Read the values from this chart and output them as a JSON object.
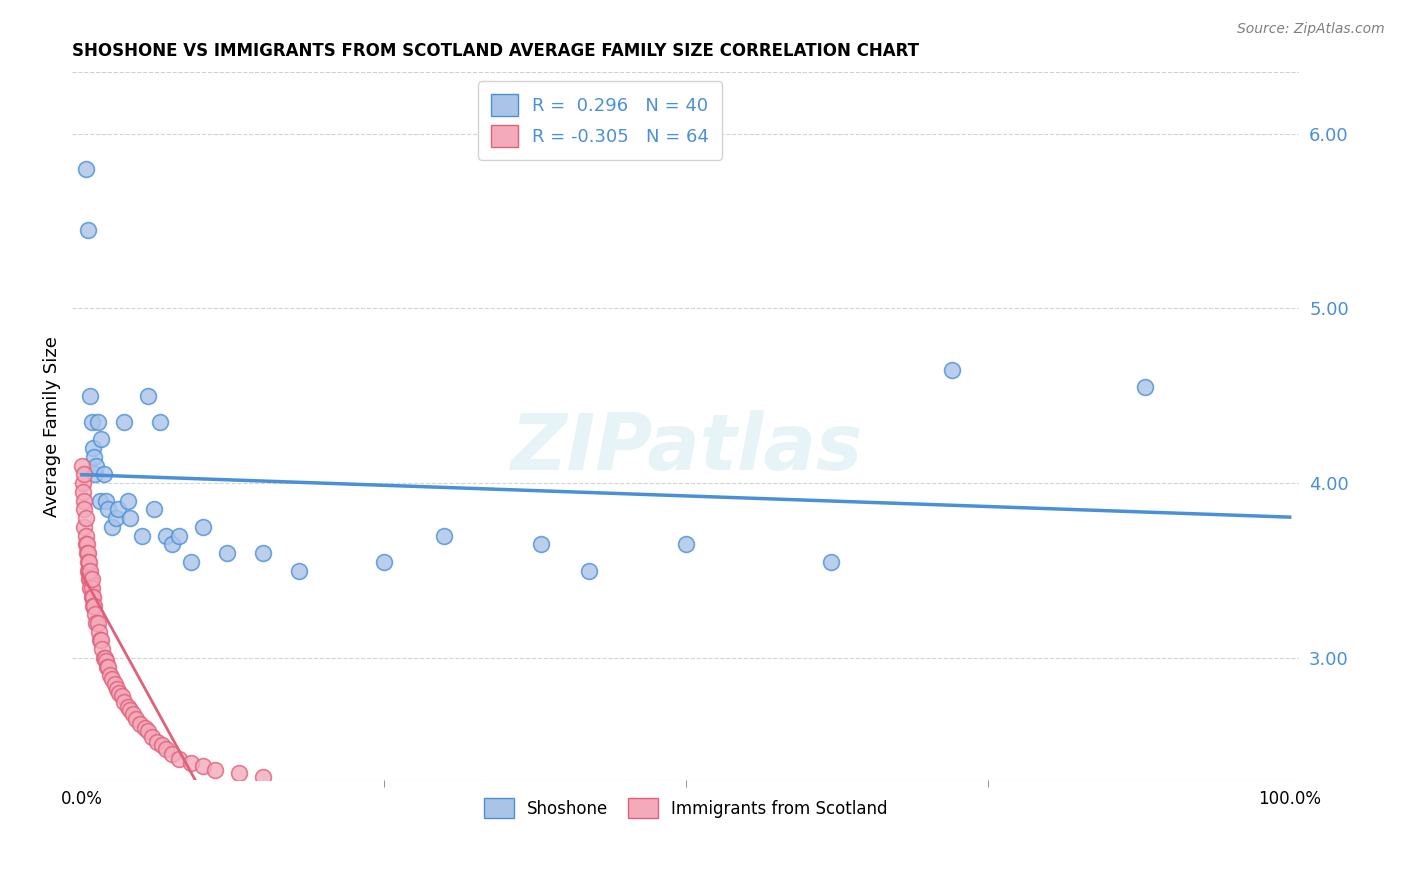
{
  "title": "SHOSHONE VS IMMIGRANTS FROM SCOTLAND AVERAGE FAMILY SIZE CORRELATION CHART",
  "source": "Source: ZipAtlas.com",
  "ylabel": "Average Family Size",
  "xlabel_ticks": [
    "0.0%",
    "100.0%"
  ],
  "yaxis_ticks": [
    3.0,
    4.0,
    5.0,
    6.0
  ],
  "ylim": [
    2.3,
    6.35
  ],
  "xlim": [
    -0.008,
    1.008
  ],
  "shoshone_R": 0.296,
  "shoshone_N": 40,
  "scotland_R": -0.305,
  "scotland_N": 64,
  "shoshone_color": "#aac4e8",
  "shoshone_line_color": "#4a90d9",
  "scotland_color": "#f4aabb",
  "scotland_line_color": "#e0607a",
  "background_color": "#ffffff",
  "grid_color": "#d0d0d0",
  "watermark": "ZIPatlas",
  "shoshone_x": [
    0.003,
    0.005,
    0.007,
    0.008,
    0.009,
    0.01,
    0.011,
    0.012,
    0.013,
    0.015,
    0.016,
    0.018,
    0.02,
    0.022,
    0.025,
    0.028,
    0.03,
    0.035,
    0.038,
    0.04,
    0.05,
    0.055,
    0.06,
    0.065,
    0.07,
    0.075,
    0.08,
    0.09,
    0.1,
    0.12,
    0.15,
    0.18,
    0.25,
    0.3,
    0.38,
    0.42,
    0.5,
    0.62,
    0.72,
    0.88
  ],
  "shoshone_y": [
    5.8,
    5.45,
    4.5,
    4.35,
    4.2,
    4.15,
    4.05,
    4.1,
    4.35,
    3.9,
    4.25,
    4.05,
    3.9,
    3.85,
    3.75,
    3.8,
    3.85,
    4.35,
    3.9,
    3.8,
    3.7,
    4.5,
    3.85,
    4.35,
    3.7,
    3.65,
    3.7,
    3.55,
    3.75,
    3.6,
    3.6,
    3.5,
    3.55,
    3.7,
    3.65,
    3.5,
    3.65,
    3.55,
    4.65,
    4.55
  ],
  "scotland_x": [
    0.0005,
    0.001,
    0.001,
    0.0015,
    0.002,
    0.002,
    0.002,
    0.003,
    0.003,
    0.003,
    0.004,
    0.004,
    0.005,
    0.005,
    0.005,
    0.006,
    0.006,
    0.006,
    0.007,
    0.007,
    0.007,
    0.008,
    0.008,
    0.008,
    0.009,
    0.009,
    0.01,
    0.011,
    0.012,
    0.013,
    0.014,
    0.015,
    0.016,
    0.017,
    0.018,
    0.019,
    0.02,
    0.021,
    0.022,
    0.023,
    0.025,
    0.027,
    0.029,
    0.031,
    0.033,
    0.035,
    0.038,
    0.04,
    0.042,
    0.045,
    0.048,
    0.052,
    0.055,
    0.058,
    0.062,
    0.066,
    0.07,
    0.075,
    0.08,
    0.09,
    0.1,
    0.11,
    0.13,
    0.15
  ],
  "scotland_y": [
    4.1,
    4.0,
    3.95,
    4.05,
    3.9,
    3.85,
    3.75,
    3.8,
    3.7,
    3.65,
    3.65,
    3.6,
    3.6,
    3.55,
    3.5,
    3.5,
    3.45,
    3.55,
    3.45,
    3.4,
    3.5,
    3.4,
    3.35,
    3.45,
    3.35,
    3.3,
    3.3,
    3.25,
    3.2,
    3.2,
    3.15,
    3.1,
    3.1,
    3.05,
    3.0,
    3.0,
    2.98,
    2.95,
    2.95,
    2.9,
    2.88,
    2.85,
    2.82,
    2.8,
    2.78,
    2.75,
    2.72,
    2.7,
    2.68,
    2.65,
    2.62,
    2.6,
    2.58,
    2.55,
    2.52,
    2.5,
    2.48,
    2.45,
    2.42,
    2.4,
    2.38,
    2.36,
    2.34,
    2.32
  ]
}
